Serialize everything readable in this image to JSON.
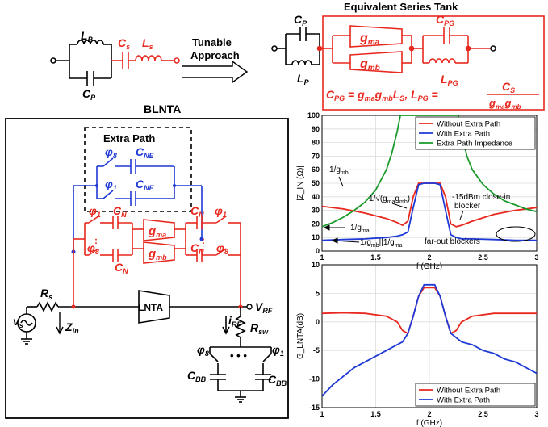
{
  "colors": {
    "red": "#e8281e",
    "blue": "#1f39d6",
    "green": "#1a9a2a",
    "black": "#000000"
  },
  "top": {
    "lp": "L",
    "lp_sub": "P",
    "cp": "C",
    "cp_sub": "P",
    "cs": "C",
    "cs_sub": "s",
    "ls": "L",
    "ls_sub": "s",
    "tunable_line1": "Tunable",
    "tunable_line2": "Approach",
    "tank_title": "Equivalent Series Tank",
    "tank_cp": "C",
    "tank_cp_sub": "P",
    "tank_lp": "L",
    "tank_lp_sub": "P",
    "gma": "g",
    "gma_sub": "ma",
    "gmb": "g",
    "gmb_sub": "mb",
    "cpg": "C",
    "cpg_sub": "PG",
    "lpg": "L",
    "lpg_sub": "PG",
    "eq_left": "C",
    "eq_left_sub": "PG",
    "eq_mid": " = g",
    "eq_mid_sub1": "ma",
    "eq_mid2": "g",
    "eq_mid_sub2": "mb",
    "eq_mid3": "L",
    "eq_mid_sub3": "S",
    "eq_mid4": ", L",
    "eq_mid_sub4": "PG",
    "eq_mid5": " = ",
    "eq_frac_num": "C",
    "eq_frac_num_sub": "S",
    "eq_frac_den": "g",
    "eq_frac_den_sub1": "ma",
    "eq_frac_den2": "g",
    "eq_frac_den_sub2": "mb"
  },
  "schematic": {
    "title": "BLNTA",
    "extra_path": "Extra Path",
    "phi": "φ",
    "phi8": "8",
    "phi1": "1",
    "cne": "C",
    "cne_sub": "NE",
    "cn": "C",
    "cn_sub": "N",
    "gma": "g",
    "gma_sub": "ma",
    "gmb": "g",
    "gmb_sub": "mb",
    "rs": "R",
    "rs_sub": "s",
    "vs": "v",
    "vs_sub": "s",
    "zin": "Z",
    "zin_sub": "in",
    "lnta": "LNTA",
    "vrf": "V",
    "vrf_sub": "RF",
    "irf": "i",
    "irf_sub": "RF",
    "rsw": "R",
    "rsw_sub": "sw",
    "cbb": "C",
    "cbb_sub": "BB",
    "dots": "• • •"
  },
  "chart_data": [
    {
      "type": "line",
      "xlabel": "f (GHz)",
      "ylabel": "|Z_IN (Ω)|",
      "xlim": [
        1,
        3
      ],
      "ylim": [
        0,
        100
      ],
      "xticks": [
        1,
        1.5,
        2,
        2.5,
        3
      ],
      "yticks": [
        0,
        10,
        20,
        30,
        40,
        50,
        60,
        70,
        80,
        90,
        100
      ],
      "grid": true,
      "legend_position": "top-right",
      "series": [
        {
          "name": "Without Extra Path",
          "color": "#e8281e",
          "x": [
            1.0,
            1.2,
            1.4,
            1.6,
            1.7,
            1.75,
            1.8,
            1.85,
            1.9,
            1.95,
            2.0,
            2.05,
            2.1,
            2.15,
            2.2,
            2.25,
            2.3,
            2.4,
            2.6,
            2.8,
            3.0
          ],
          "y": [
            33,
            31,
            28,
            24,
            21,
            19,
            22,
            40,
            50,
            50,
            50,
            50,
            50,
            40,
            20,
            18,
            19,
            22,
            27,
            30,
            32
          ]
        },
        {
          "name": "With Extra Path",
          "color": "#1f39d6",
          "x": [
            1.0,
            1.2,
            1.4,
            1.6,
            1.7,
            1.75,
            1.8,
            1.85,
            1.9,
            1.95,
            2.0,
            2.05,
            2.1,
            2.15,
            2.2,
            2.25,
            2.3,
            2.4,
            2.6,
            2.8,
            3.0
          ],
          "y": [
            8,
            8.5,
            9,
            10,
            11,
            12,
            14,
            32,
            49,
            50,
            50,
            50,
            49,
            30,
            12,
            10,
            9,
            9,
            8.5,
            8,
            8
          ]
        },
        {
          "name": "Extra Path Impedance",
          "color": "#1a9a2a",
          "x": [
            1.0,
            1.1,
            1.2,
            1.3,
            1.4,
            1.5,
            1.6,
            1.65,
            1.7,
            1.73,
            2.27,
            2.3,
            2.35,
            2.4,
            2.5,
            2.6,
            2.7,
            2.8,
            2.9,
            3.0
          ],
          "y": [
            18,
            21,
            25,
            30,
            36,
            45,
            60,
            72,
            88,
            100,
            100,
            88,
            70,
            60,
            49,
            42,
            37,
            34,
            31,
            29
          ]
        }
      ],
      "annotations": [
        {
          "text": "1/g",
          "sub": "mb"
        },
        {
          "text": "1/√(g",
          "sub": "ma",
          "text2": "g",
          "sub2": "mb",
          "text3": ")"
        },
        {
          "text": "-15dBm close-in"
        },
        {
          "text": "blocker"
        },
        {
          "text": "1/g",
          "sub": "ma"
        },
        {
          "text": "1/g",
          "sub": "mb",
          "text2": "||1/g",
          "sub2": "ma"
        },
        {
          "text": "far-out blockers"
        }
      ]
    },
    {
      "type": "line",
      "xlabel": "f (GHz)",
      "ylabel": "G_LNTA(dB)",
      "xlim": [
        1,
        3
      ],
      "ylim": [
        -15,
        10
      ],
      "xticks": [
        1,
        1.5,
        2,
        2.5,
        3
      ],
      "yticks": [
        -15,
        -10,
        -5,
        0,
        5,
        10
      ],
      "grid": true,
      "legend_position": "bottom-right",
      "series": [
        {
          "name": "Without Extra Path",
          "color": "#e8281e",
          "x": [
            1.0,
            1.2,
            1.4,
            1.6,
            1.7,
            1.75,
            1.8,
            1.85,
            1.9,
            1.95,
            2.0,
            2.05,
            2.1,
            2.15,
            2.2,
            2.25,
            2.3,
            2.4,
            2.6,
            2.8,
            3.0
          ],
          "y": [
            1.5,
            1.6,
            1.5,
            1.0,
            0,
            -1.5,
            -2,
            1,
            4.5,
            6,
            6,
            6,
            4.5,
            1,
            -2,
            -1.5,
            0,
            1,
            1.5,
            1.5,
            1.5
          ]
        },
        {
          "name": "With Extra Path",
          "color": "#1f39d6",
          "x": [
            1.0,
            1.1,
            1.2,
            1.3,
            1.4,
            1.5,
            1.6,
            1.7,
            1.75,
            1.8,
            1.85,
            1.9,
            1.95,
            2.0,
            2.05,
            2.1,
            2.15,
            2.2,
            2.3,
            2.4,
            2.5,
            2.6,
            2.7,
            2.8,
            2.9,
            3.0
          ],
          "y": [
            -13,
            -11,
            -9.5,
            -8,
            -7,
            -6,
            -5,
            -4,
            -3.5,
            -2,
            1,
            4.5,
            6.5,
            6.5,
            6.5,
            4.5,
            1,
            -2,
            -3.5,
            -4,
            -5,
            -5.5,
            -6.5,
            -7,
            -8,
            -9
          ]
        }
      ]
    }
  ]
}
